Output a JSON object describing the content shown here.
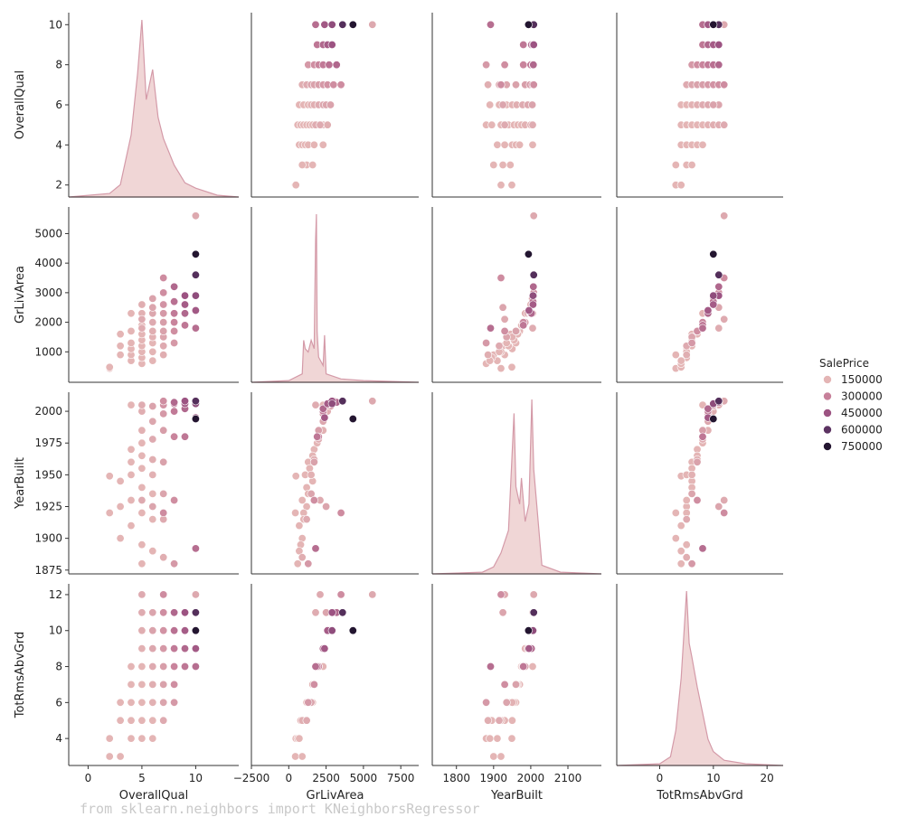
{
  "chart_data": {
    "type": "scatter",
    "title": "",
    "kind": "pairplot",
    "variables": [
      "OverallQual",
      "GrLivArea",
      "YearBuilt",
      "TotRmsAbvGrd"
    ],
    "hue": "SalePrice",
    "ranges": {
      "OverallQual": [
        -1.8,
        14
      ],
      "GrLivArea": [
        -2500,
        8700
      ],
      "YearBuilt": [
        1735,
        2190
      ],
      "TotRmsAbvGrd": [
        -8,
        23
      ]
    },
    "y_ranges": {
      "OverallQual": [
        1.4,
        10.6
      ],
      "GrLivArea": [
        -30,
        5900
      ],
      "YearBuilt": [
        1872,
        2015
      ],
      "TotRmsAbvGrd": [
        2.5,
        12.6
      ]
    },
    "ticks_x": {
      "OverallQual": [
        0,
        5,
        10
      ],
      "GrLivArea": [
        -2500,
        0,
        2500,
        5000,
        7500
      ],
      "YearBuilt": [
        1800,
        1900,
        2000,
        2100
      ],
      "TotRmsAbvGrd": [
        0,
        10,
        20
      ]
    },
    "tick_labels_x": {
      "OverallQual": [
        "0",
        "5",
        "10"
      ],
      "GrLivArea": [
        "−2500",
        "0",
        "2500",
        "5000",
        "7500"
      ],
      "YearBuilt": [
        "1800",
        "1900",
        "2000",
        "2100"
      ],
      "TotRmsAbvGrd": [
        "0",
        "10",
        "20"
      ]
    },
    "ticks_y": {
      "OverallQual": [
        2,
        4,
        6,
        8,
        10
      ],
      "GrLivArea": [
        1000,
        2000,
        3000,
        4000,
        5000
      ],
      "YearBuilt": [
        1875,
        1900,
        1925,
        1950,
        1975,
        2000
      ],
      "TotRmsAbvGrd": [
        4,
        6,
        8,
        10,
        12
      ]
    },
    "legend": {
      "title": "SalePrice",
      "placement": "right-center",
      "entries": [
        {
          "label": "150000",
          "value": 150000,
          "color": "#e4b5b5"
        },
        {
          "label": "300000",
          "value": 300000,
          "color": "#c7809a"
        },
        {
          "label": "450000",
          "value": 450000,
          "color": "#9c5382"
        },
        {
          "label": "600000",
          "value": 600000,
          "color": "#5c3362"
        },
        {
          "label": "750000",
          "value": 750000,
          "color": "#231530"
        }
      ]
    },
    "points": [
      {
        "OverallQual": 2,
        "GrLivArea": 440,
        "YearBuilt": 1920,
        "TotRmsAbvGrd": 3,
        "SalePrice": 40000
      },
      {
        "OverallQual": 2,
        "GrLivArea": 480,
        "YearBuilt": 1949,
        "TotRmsAbvGrd": 4,
        "SalePrice": 60000
      },
      {
        "OverallQual": 3,
        "GrLivArea": 900,
        "YearBuilt": 1900,
        "TotRmsAbvGrd": 3,
        "SalePrice": 80000
      },
      {
        "OverallQual": 3,
        "GrLivArea": 1200,
        "YearBuilt": 1925,
        "TotRmsAbvGrd": 5,
        "SalePrice": 75000
      },
      {
        "OverallQual": 3,
        "GrLivArea": 1600,
        "YearBuilt": 1945,
        "TotRmsAbvGrd": 6,
        "SalePrice": 90000
      },
      {
        "OverallQual": 4,
        "GrLivArea": 700,
        "YearBuilt": 1910,
        "TotRmsAbvGrd": 4,
        "SalePrice": 95000
      },
      {
        "OverallQual": 4,
        "GrLivArea": 900,
        "YearBuilt": 1930,
        "TotRmsAbvGrd": 5,
        "SalePrice": 100000
      },
      {
        "OverallQual": 4,
        "GrLivArea": 1100,
        "YearBuilt": 1950,
        "TotRmsAbvGrd": 5,
        "SalePrice": 110000
      },
      {
        "OverallQual": 4,
        "GrLivArea": 1300,
        "YearBuilt": 1960,
        "TotRmsAbvGrd": 6,
        "SalePrice": 115000
      },
      {
        "OverallQual": 4,
        "GrLivArea": 1700,
        "YearBuilt": 1970,
        "TotRmsAbvGrd": 7,
        "SalePrice": 125000
      },
      {
        "OverallQual": 4,
        "GrLivArea": 2300,
        "YearBuilt": 2005,
        "TotRmsAbvGrd": 8,
        "SalePrice": 140000
      },
      {
        "OverallQual": 5,
        "GrLivArea": 600,
        "YearBuilt": 1880,
        "TotRmsAbvGrd": 4,
        "SalePrice": 110000
      },
      {
        "OverallQual": 5,
        "GrLivArea": 800,
        "YearBuilt": 1895,
        "TotRmsAbvGrd": 5,
        "SalePrice": 120000
      },
      {
        "OverallQual": 5,
        "GrLivArea": 1000,
        "YearBuilt": 1920,
        "TotRmsAbvGrd": 5,
        "SalePrice": 125000
      },
      {
        "OverallQual": 5,
        "GrLivArea": 1200,
        "YearBuilt": 1940,
        "TotRmsAbvGrd": 6,
        "SalePrice": 130000
      },
      {
        "OverallQual": 5,
        "GrLivArea": 1400,
        "YearBuilt": 1955,
        "TotRmsAbvGrd": 6,
        "SalePrice": 135000
      },
      {
        "OverallQual": 5,
        "GrLivArea": 1600,
        "YearBuilt": 1965,
        "TotRmsAbvGrd": 7,
        "SalePrice": 140000
      },
      {
        "OverallQual": 5,
        "GrLivArea": 1900,
        "YearBuilt": 1975,
        "TotRmsAbvGrd": 8,
        "SalePrice": 150000
      },
      {
        "OverallQual": 5,
        "GrLivArea": 2300,
        "YearBuilt": 1985,
        "TotRmsAbvGrd": 9,
        "SalePrice": 160000
      },
      {
        "OverallQual": 5,
        "GrLivArea": 2600,
        "YearBuilt": 2000,
        "TotRmsAbvGrd": 10,
        "SalePrice": 170000
      },
      {
        "OverallQual": 5,
        "GrLivArea": 1800,
        "YearBuilt": 2005,
        "TotRmsAbvGrd": 11,
        "SalePrice": 175000
      },
      {
        "OverallQual": 5,
        "GrLivArea": 2100,
        "YearBuilt": 1930,
        "TotRmsAbvGrd": 12,
        "SalePrice": 180000
      },
      {
        "OverallQual": 6,
        "GrLivArea": 700,
        "YearBuilt": 1890,
        "TotRmsAbvGrd": 4,
        "SalePrice": 130000
      },
      {
        "OverallQual": 6,
        "GrLivArea": 1000,
        "YearBuilt": 1915,
        "TotRmsAbvGrd": 5,
        "SalePrice": 140000
      },
      {
        "OverallQual": 6,
        "GrLivArea": 1300,
        "YearBuilt": 1935,
        "TotRmsAbvGrd": 6,
        "SalePrice": 150000
      },
      {
        "OverallQual": 6,
        "GrLivArea": 1500,
        "YearBuilt": 1950,
        "TotRmsAbvGrd": 6,
        "SalePrice": 160000
      },
      {
        "OverallQual": 6,
        "GrLivArea": 1700,
        "YearBuilt": 1962,
        "TotRmsAbvGrd": 7,
        "SalePrice": 170000
      },
      {
        "OverallQual": 6,
        "GrLivArea": 2000,
        "YearBuilt": 1978,
        "TotRmsAbvGrd": 8,
        "SalePrice": 180000
      },
      {
        "OverallQual": 6,
        "GrLivArea": 2300,
        "YearBuilt": 1992,
        "TotRmsAbvGrd": 9,
        "SalePrice": 190000
      },
      {
        "OverallQual": 6,
        "GrLivArea": 2800,
        "YearBuilt": 2004,
        "TotRmsAbvGrd": 10,
        "SalePrice": 200000
      },
      {
        "OverallQual": 6,
        "GrLivArea": 2500,
        "YearBuilt": 1925,
        "TotRmsAbvGrd": 11,
        "SalePrice": 195000
      },
      {
        "OverallQual": 7,
        "GrLivArea": 900,
        "YearBuilt": 1885,
        "TotRmsAbvGrd": 5,
        "SalePrice": 170000
      },
      {
        "OverallQual": 7,
        "GrLivArea": 1200,
        "YearBuilt": 1915,
        "TotRmsAbvGrd": 5,
        "SalePrice": 180000
      },
      {
        "OverallQual": 7,
        "GrLivArea": 1500,
        "YearBuilt": 1935,
        "TotRmsAbvGrd": 6,
        "SalePrice": 195000
      },
      {
        "OverallQual": 7,
        "GrLivArea": 1700,
        "YearBuilt": 1960,
        "TotRmsAbvGrd": 7,
        "SalePrice": 205000
      },
      {
        "OverallQual": 7,
        "GrLivArea": 2000,
        "YearBuilt": 1985,
        "TotRmsAbvGrd": 8,
        "SalePrice": 215000
      },
      {
        "OverallQual": 7,
        "GrLivArea": 2300,
        "YearBuilt": 1998,
        "TotRmsAbvGrd": 9,
        "SalePrice": 230000
      },
      {
        "OverallQual": 7,
        "GrLivArea": 2600,
        "YearBuilt": 2005,
        "TotRmsAbvGrd": 10,
        "SalePrice": 245000
      },
      {
        "OverallQual": 7,
        "GrLivArea": 3000,
        "YearBuilt": 2008,
        "TotRmsAbvGrd": 11,
        "SalePrice": 260000
      },
      {
        "OverallQual": 7,
        "GrLivArea": 3500,
        "YearBuilt": 1920,
        "TotRmsAbvGrd": 12,
        "SalePrice": 265000
      },
      {
        "OverallQual": 8,
        "GrLivArea": 1300,
        "YearBuilt": 1880,
        "TotRmsAbvGrd": 6,
        "SalePrice": 230000
      },
      {
        "OverallQual": 8,
        "GrLivArea": 1700,
        "YearBuilt": 1930,
        "TotRmsAbvGrd": 7,
        "SalePrice": 260000
      },
      {
        "OverallQual": 8,
        "GrLivArea": 2000,
        "YearBuilt": 1980,
        "TotRmsAbvGrd": 8,
        "SalePrice": 290000
      },
      {
        "OverallQual": 8,
        "GrLivArea": 2300,
        "YearBuilt": 2000,
        "TotRmsAbvGrd": 9,
        "SalePrice": 320000
      },
      {
        "OverallQual": 8,
        "GrLivArea": 2700,
        "YearBuilt": 2006,
        "TotRmsAbvGrd": 10,
        "SalePrice": 350000
      },
      {
        "OverallQual": 8,
        "GrLivArea": 3200,
        "YearBuilt": 2007,
        "TotRmsAbvGrd": 11,
        "SalePrice": 380000
      },
      {
        "OverallQual": 9,
        "GrLivArea": 1900,
        "YearBuilt": 1980,
        "TotRmsAbvGrd": 8,
        "SalePrice": 330000
      },
      {
        "OverallQual": 9,
        "GrLivArea": 2300,
        "YearBuilt": 2002,
        "TotRmsAbvGrd": 9,
        "SalePrice": 380000
      },
      {
        "OverallQual": 9,
        "GrLivArea": 2600,
        "YearBuilt": 2006,
        "TotRmsAbvGrd": 10,
        "SalePrice": 420000
      },
      {
        "OverallQual": 9,
        "GrLivArea": 2900,
        "YearBuilt": 2008,
        "TotRmsAbvGrd": 11,
        "SalePrice": 450000
      },
      {
        "OverallQual": 10,
        "GrLivArea": 1800,
        "YearBuilt": 1892,
        "TotRmsAbvGrd": 8,
        "SalePrice": 360000
      },
      {
        "OverallQual": 10,
        "GrLivArea": 2400,
        "YearBuilt": 1995,
        "TotRmsAbvGrd": 9,
        "SalePrice": 430000
      },
      {
        "OverallQual": 10,
        "GrLivArea": 2900,
        "YearBuilt": 2006,
        "TotRmsAbvGrd": 10,
        "SalePrice": 480000
      },
      {
        "OverallQual": 10,
        "GrLivArea": 3600,
        "YearBuilt": 2008,
        "TotRmsAbvGrd": 11,
        "SalePrice": 620000
      },
      {
        "OverallQual": 10,
        "GrLivArea": 4300,
        "YearBuilt": 1994,
        "TotRmsAbvGrd": 10,
        "SalePrice": 750000
      },
      {
        "OverallQual": 10,
        "GrLivArea": 5600,
        "YearBuilt": 2008,
        "TotRmsAbvGrd": 12,
        "SalePrice": 185000
      }
    ],
    "density_curves": {
      "OverallQual": [
        [
          -1.8,
          0
        ],
        [
          2,
          0.02
        ],
        [
          3,
          0.07
        ],
        [
          4,
          0.35
        ],
        [
          4.6,
          0.7
        ],
        [
          5,
          1.0
        ],
        [
          5.4,
          0.55
        ],
        [
          6,
          0.72
        ],
        [
          6.5,
          0.45
        ],
        [
          7,
          0.33
        ],
        [
          8,
          0.18
        ],
        [
          9,
          0.08
        ],
        [
          10,
          0.05
        ],
        [
          12,
          0.01
        ],
        [
          14,
          0
        ]
      ],
      "GrLivArea": [
        [
          -2500,
          0
        ],
        [
          0,
          0.01
        ],
        [
          900,
          0.05
        ],
        [
          1000,
          0.25
        ],
        [
          1100,
          0.2
        ],
        [
          1300,
          0.18
        ],
        [
          1500,
          0.25
        ],
        [
          1700,
          0.2
        ],
        [
          1800,
          0.85
        ],
        [
          1850,
          1.0
        ],
        [
          1900,
          0.3
        ],
        [
          2000,
          0.15
        ],
        [
          2300,
          0.1
        ],
        [
          2400,
          0.28
        ],
        [
          2500,
          0.05
        ],
        [
          3500,
          0.02
        ],
        [
          5000,
          0.01
        ],
        [
          8700,
          0
        ]
      ],
      "YearBuilt": [
        [
          1735,
          0
        ],
        [
          1870,
          0.01
        ],
        [
          1900,
          0.04
        ],
        [
          1920,
          0.12
        ],
        [
          1940,
          0.25
        ],
        [
          1955,
          0.92
        ],
        [
          1960,
          0.5
        ],
        [
          1970,
          0.4
        ],
        [
          1975,
          0.55
        ],
        [
          1985,
          0.3
        ],
        [
          1995,
          0.4
        ],
        [
          2003,
          1.0
        ],
        [
          2008,
          0.6
        ],
        [
          2030,
          0.05
        ],
        [
          2080,
          0.01
        ],
        [
          2190,
          0
        ]
      ],
      "TotRmsAbvGrd": [
        [
          -8,
          0
        ],
        [
          0,
          0.01
        ],
        [
          2,
          0.05
        ],
        [
          3,
          0.2
        ],
        [
          4,
          0.5
        ],
        [
          5,
          1.0
        ],
        [
          5.5,
          0.7
        ],
        [
          6,
          0.62
        ],
        [
          7,
          0.45
        ],
        [
          8,
          0.3
        ],
        [
          9,
          0.15
        ],
        [
          10,
          0.08
        ],
        [
          12,
          0.03
        ],
        [
          16,
          0.01
        ],
        [
          23,
          0
        ]
      ]
    }
  },
  "code_line": "from sklearn.neighbors import KNeighborsRegressor"
}
